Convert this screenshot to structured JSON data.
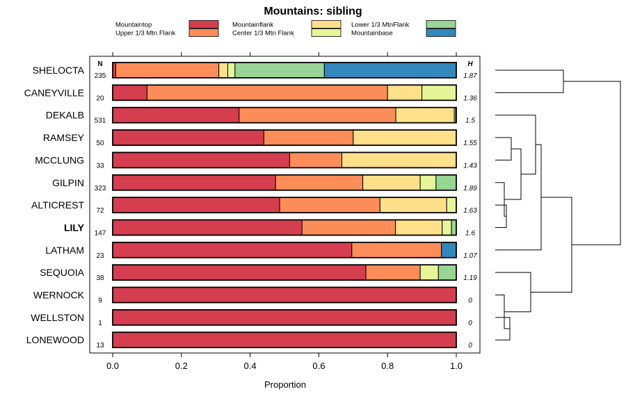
{
  "chart_data": {
    "type": "bar",
    "orientation": "horizontal",
    "stacked": true,
    "title": "Mountains: sibling",
    "xlabel": "Proportion",
    "ylabel": "",
    "xlim": [
      0,
      1
    ],
    "xticks": [
      "0.0",
      "0.2",
      "0.4",
      "0.6",
      "0.8",
      "1.0"
    ],
    "n_header": "N",
    "h_header": "H",
    "highlight_category": "LILY",
    "legend": [
      {
        "name": "Mountaintop",
        "color": "#d53e4f"
      },
      {
        "name": "Upper 1/3 Mtn Flank",
        "color": "#fc8d59"
      },
      {
        "name": "Mountainflank",
        "color": "#fee08b"
      },
      {
        "name": "Center 1/3 Mtn Flank",
        "color": "#e6f598"
      },
      {
        "name": "Lower 1/3 MtnFlank",
        "color": "#99d594"
      },
      {
        "name": "Mountainbase",
        "color": "#3288bd"
      }
    ],
    "categories": [
      "SHELOCTA",
      "CANEYVILLE",
      "DEKALB",
      "RAMSEY",
      "MCCLUNG",
      "GILPIN",
      "ALTICREST",
      "LILY",
      "LATHAM",
      "SEQUOIA",
      "WERNOCK",
      "WELLSTON",
      "LONEWOOD"
    ],
    "n": [
      "235",
      "20",
      "531",
      "50",
      "33",
      "323",
      "72",
      "147",
      "23",
      "38",
      "9",
      "1",
      "13"
    ],
    "h": [
      "1.87",
      "1.36",
      "1.5",
      "1.55",
      "1.43",
      "1.89",
      "1.63",
      "1.6",
      "1.07",
      "1.19",
      "0",
      "0",
      "0"
    ],
    "series": [
      {
        "name": "Mountaintop",
        "values": [
          0.009,
          0.1,
          0.368,
          0.44,
          0.515,
          0.474,
          0.486,
          0.551,
          0.696,
          0.737,
          1.0,
          1.0,
          1.0
        ]
      },
      {
        "name": "Upper 1/3 Mtn Flank",
        "values": [
          0.3,
          0.7,
          0.456,
          0.26,
          0.152,
          0.254,
          0.292,
          0.272,
          0.261,
          0.158,
          0,
          0,
          0
        ]
      },
      {
        "name": "Mountainflank",
        "values": [
          0.026,
          0.1,
          0.17,
          0.3,
          0.333,
          0.167,
          0.194,
          0.136,
          0,
          0,
          0,
          0,
          0
        ]
      },
      {
        "name": "Center 1/3 Mtn Flank",
        "values": [
          0.021,
          0.1,
          0.004,
          0,
          0,
          0.046,
          0.028,
          0.027,
          0,
          0.053,
          0,
          0,
          0
        ]
      },
      {
        "name": "Lower 1/3 MtnFlank",
        "values": [
          0.26,
          0,
          0,
          0,
          0,
          0.059,
          0,
          0.014,
          0,
          0.052,
          0,
          0,
          0
        ]
      },
      {
        "name": "Mountainbase",
        "values": [
          0.384,
          0,
          0.002,
          0,
          0,
          0,
          0,
          0,
          0.043,
          0,
          0,
          0,
          0
        ]
      }
    ],
    "dendrogram": "hierarchical clustering tree of the 13 series rows"
  }
}
